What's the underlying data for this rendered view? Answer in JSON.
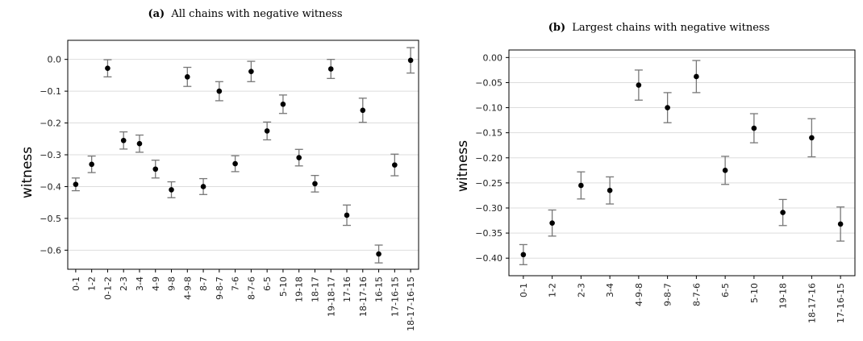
{
  "chart_data": [
    {
      "type": "scatter",
      "title_prefix": "(a)",
      "title": "All chains with negative witness",
      "ylabel": "witness",
      "xlabel": "",
      "ylim": [
        -0.66,
        0.06
      ],
      "yticks": [
        0.0,
        -0.1,
        -0.2,
        -0.3,
        -0.4,
        -0.5,
        -0.6
      ],
      "ytick_labels": [
        "0.0",
        "−0.1",
        "−0.2",
        "−0.3",
        "−0.4",
        "−0.5",
        "−0.6"
      ],
      "grid": "horizontal",
      "categories": [
        "0-1",
        "1-2",
        "0-1-2",
        "2-3",
        "3-4",
        "4-9",
        "9-8",
        "4-9-8",
        "8-7",
        "9-8-7",
        "7-6",
        "8-7-6",
        "6-5",
        "5-10",
        "19-18",
        "18-17",
        "19-18-17",
        "17-16",
        "18-17-16",
        "16-15",
        "17-16-15",
        "18-17-16-15"
      ],
      "values": [
        -0.393,
        -0.33,
        -0.028,
        -0.255,
        -0.265,
        -0.345,
        -0.41,
        -0.055,
        -0.4,
        -0.1,
        -0.328,
        -0.038,
        -0.225,
        -0.141,
        -0.309,
        -0.391,
        -0.03,
        -0.49,
        -0.16,
        -0.612,
        -0.332,
        -0.003
      ],
      "errors": [
        0.02,
        0.026,
        0.027,
        0.027,
        0.027,
        0.028,
        0.025,
        0.03,
        0.025,
        0.03,
        0.025,
        0.032,
        0.028,
        0.029,
        0.026,
        0.026,
        0.03,
        0.032,
        0.038,
        0.028,
        0.034,
        0.04
      ]
    },
    {
      "type": "scatter",
      "title_prefix": "(b)",
      "title": "Largest chains with negative witness",
      "ylabel": "witness",
      "xlabel": "",
      "ylim": [
        -0.435,
        0.015
      ],
      "yticks": [
        0.0,
        -0.05,
        -0.1,
        -0.15,
        -0.2,
        -0.25,
        -0.3,
        -0.35,
        -0.4
      ],
      "ytick_labels": [
        "0.00",
        "−0.05",
        "−0.10",
        "−0.15",
        "−0.20",
        "−0.25",
        "−0.30",
        "−0.35",
        "−0.40"
      ],
      "grid": "horizontal",
      "categories": [
        "0-1",
        "1-2",
        "2-3",
        "3-4",
        "4-9-8",
        "9-8-7",
        "8-7-6",
        "6-5",
        "5-10",
        "19-18",
        "18-17-16",
        "17-16-15"
      ],
      "values": [
        -0.393,
        -0.33,
        -0.255,
        -0.265,
        -0.055,
        -0.1,
        -0.038,
        -0.225,
        -0.141,
        -0.309,
        -0.16,
        -0.332
      ],
      "errors": [
        0.02,
        0.026,
        0.027,
        0.027,
        0.03,
        0.03,
        0.032,
        0.028,
        0.029,
        0.026,
        0.038,
        0.034
      ]
    }
  ]
}
